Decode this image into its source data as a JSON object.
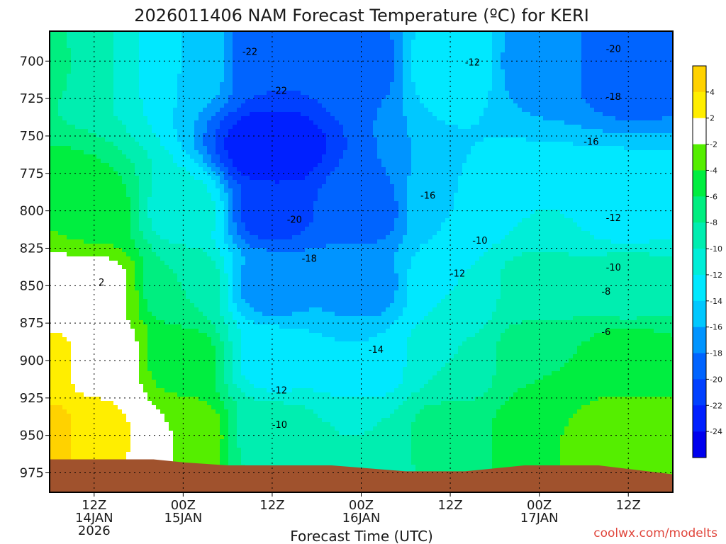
{
  "chart_data": {
    "type": "heatmap",
    "title": "2026011406 NAM Forecast Temperature (ºC) for KERI",
    "xlabel": "Forecast Time (UTC)",
    "credit": "coolwx.com/modelts",
    "y_axis": {
      "name": "pressure_hPa",
      "ticks": [
        "700",
        "725",
        "750",
        "775",
        "800",
        "825",
        "850",
        "875",
        "900",
        "925",
        "950",
        "975"
      ],
      "tick_values": [
        700,
        725,
        750,
        775,
        800,
        825,
        850,
        875,
        900,
        925,
        950,
        975
      ],
      "range": [
        680,
        988
      ],
      "inverted": true
    },
    "x_axis": {
      "name": "forecast_hour",
      "range": [
        6,
        90
      ],
      "ticks": [
        {
          "hour": 12,
          "line1": "12Z",
          "line2": "14JAN",
          "line3": "2026"
        },
        {
          "hour": 24,
          "line1": "00Z",
          "line2": "15JAN",
          "line3": ""
        },
        {
          "hour": 36,
          "line1": "12Z",
          "line2": "",
          "line3": ""
        },
        {
          "hour": 48,
          "line1": "00Z",
          "line2": "16JAN",
          "line3": ""
        },
        {
          "hour": 60,
          "line1": "12Z",
          "line2": "",
          "line3": ""
        },
        {
          "hour": 72,
          "line1": "00Z",
          "line2": "17JAN",
          "line3": ""
        },
        {
          "hour": 84,
          "line1": "12Z",
          "line2": "",
          "line3": ""
        }
      ]
    },
    "color_scale": {
      "labels": [
        "4",
        "2",
        "-2",
        "-4",
        "-6",
        "-8",
        "-10",
        "-12",
        "-14",
        "-16",
        "-18",
        "-20",
        "-22",
        "-24"
      ],
      "label_values": [
        4,
        2,
        -2,
        -4,
        -6,
        -8,
        -10,
        -12,
        -14,
        -16,
        -18,
        -20,
        -22,
        -24
      ],
      "bands": [
        {
          "min": 4,
          "max": 6,
          "color": "#ffd200"
        },
        {
          "min": 2,
          "max": 4,
          "color": "#ffee00"
        },
        {
          "min": -2,
          "max": 2,
          "color": "#ffffff"
        },
        {
          "min": -4,
          "max": -2,
          "color": "#55ee00"
        },
        {
          "min": -6,
          "max": -4,
          "color": "#00ee40"
        },
        {
          "min": -8,
          "max": -6,
          "color": "#00ee80"
        },
        {
          "min": -10,
          "max": -8,
          "color": "#00eeb0"
        },
        {
          "min": -12,
          "max": -10,
          "color": "#00eed8"
        },
        {
          "min": -14,
          "max": -12,
          "color": "#00e8ff"
        },
        {
          "min": -16,
          "max": -14,
          "color": "#00c8ff"
        },
        {
          "min": -18,
          "max": -16,
          "color": "#0094ff"
        },
        {
          "min": -20,
          "max": -18,
          "color": "#0064ff"
        },
        {
          "min": -22,
          "max": -20,
          "color": "#0040ff"
        },
        {
          "min": -24,
          "max": -22,
          "color": "#0020ff"
        },
        {
          "min": -26,
          "max": -24,
          "color": "#0000ee"
        }
      ]
    },
    "terrain": {
      "color": "#a0522d",
      "surface_pressure": [
        [
          6,
          966
        ],
        [
          20,
          966
        ],
        [
          24,
          968
        ],
        [
          30,
          970
        ],
        [
          44,
          970
        ],
        [
          54,
          974
        ],
        [
          62,
          974
        ],
        [
          70,
          970
        ],
        [
          80,
          970
        ],
        [
          90,
          976
        ]
      ]
    },
    "field_samples": [
      [
        6,
        700,
        -7
      ],
      [
        6,
        800,
        -4
      ],
      [
        6,
        850,
        -1
      ],
      [
        6,
        900,
        3
      ],
      [
        6,
        950,
        5
      ],
      [
        12,
        700,
        -10
      ],
      [
        12,
        800,
        -5
      ],
      [
        12,
        850,
        -1
      ],
      [
        12,
        900,
        1
      ],
      [
        12,
        950,
        3
      ],
      [
        24,
        700,
        -14
      ],
      [
        24,
        800,
        -11
      ],
      [
        24,
        850,
        -8
      ],
      [
        24,
        900,
        -5
      ],
      [
        24,
        950,
        -2
      ],
      [
        36,
        700,
        -20
      ],
      [
        36,
        760,
        -24
      ],
      [
        36,
        800,
        -21
      ],
      [
        36,
        850,
        -17
      ],
      [
        36,
        900,
        -13
      ],
      [
        36,
        950,
        -9
      ],
      [
        48,
        700,
        -19
      ],
      [
        48,
        800,
        -19
      ],
      [
        48,
        850,
        -17
      ],
      [
        48,
        900,
        -14
      ],
      [
        48,
        950,
        -10
      ],
      [
        60,
        700,
        -12
      ],
      [
        60,
        800,
        -14
      ],
      [
        60,
        850,
        -12
      ],
      [
        60,
        900,
        -10
      ],
      [
        60,
        950,
        -7
      ],
      [
        72,
        700,
        -17
      ],
      [
        72,
        800,
        -12
      ],
      [
        72,
        850,
        -9
      ],
      [
        72,
        900,
        -6
      ],
      [
        72,
        950,
        -4
      ],
      [
        84,
        700,
        -20
      ],
      [
        84,
        800,
        -13
      ],
      [
        84,
        850,
        -9
      ],
      [
        84,
        900,
        -5
      ],
      [
        84,
        950,
        -2
      ]
    ],
    "contour_labels": [
      {
        "text": "-22",
        "hour": 33,
        "pressure": 694
      },
      {
        "text": "-22",
        "hour": 37,
        "pressure": 720
      },
      {
        "text": "-20",
        "hour": 82,
        "pressure": 692
      },
      {
        "text": "-18",
        "hour": 82,
        "pressure": 724
      },
      {
        "text": "-12",
        "hour": 63,
        "pressure": 701
      },
      {
        "text": "-16",
        "hour": 79,
        "pressure": 754
      },
      {
        "text": "-16",
        "hour": 57,
        "pressure": 790
      },
      {
        "text": "-20",
        "hour": 39,
        "pressure": 806
      },
      {
        "text": "-18",
        "hour": 41,
        "pressure": 832
      },
      {
        "text": "-12",
        "hour": 82,
        "pressure": 805
      },
      {
        "text": "-10",
        "hour": 64,
        "pressure": 820
      },
      {
        "text": "-10",
        "hour": 82,
        "pressure": 838
      },
      {
        "text": "-12",
        "hour": 61,
        "pressure": 842
      },
      {
        "text": "-8",
        "hour": 81,
        "pressure": 854
      },
      {
        "text": "-6",
        "hour": 81,
        "pressure": 881
      },
      {
        "text": "-14",
        "hour": 50,
        "pressure": 893
      },
      {
        "text": "-12",
        "hour": 37,
        "pressure": 920
      },
      {
        "text": "-10",
        "hour": 37,
        "pressure": 943
      },
      {
        "text": "2",
        "hour": 13,
        "pressure": 848
      }
    ]
  }
}
